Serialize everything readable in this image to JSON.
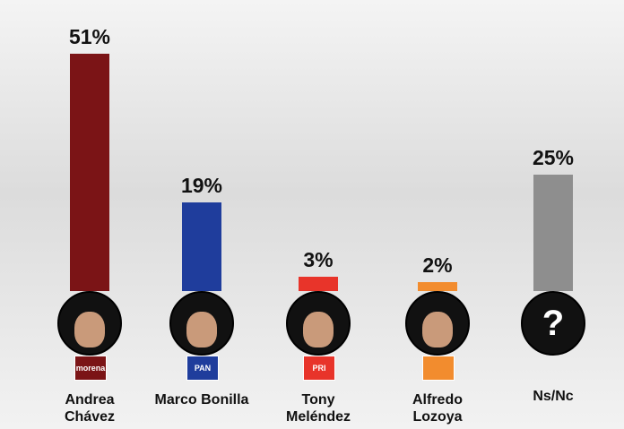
{
  "chart_data": {
    "type": "bar",
    "categories": [
      "Andrea Chávez",
      "Marco Bonilla",
      "Tony Meléndez",
      "Alfredo Lozoya",
      "Ns/Nc"
    ],
    "values": [
      51,
      19,
      3,
      2,
      25
    ],
    "value_labels": [
      "51%",
      "19%",
      "3%",
      "2%",
      "25%"
    ],
    "colors": [
      "#7b1416",
      "#1f3d9c",
      "#e8342a",
      "#f28c2e",
      "#8e8e8e"
    ],
    "party_logos": [
      "morena",
      "PAN",
      "PRI",
      null,
      null
    ],
    "icons": [
      null,
      null,
      null,
      null,
      "?"
    ]
  }
}
